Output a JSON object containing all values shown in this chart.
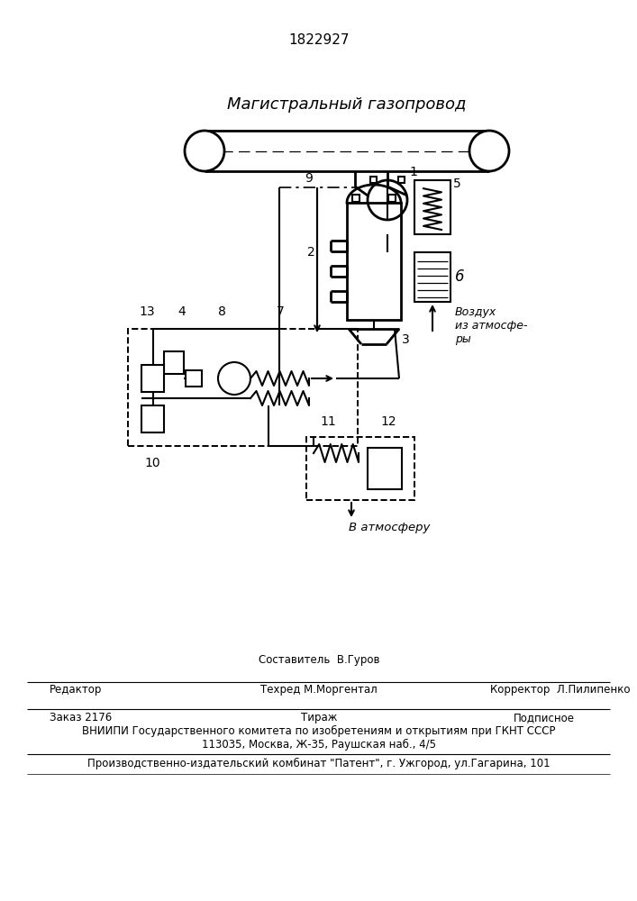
{
  "patent_number": "1822927",
  "title_pipe": "Магистральный газопровод",
  "label_vozduh": "Воздух\nиз атмосфе-\nры",
  "label_vatm": "В атмосферу",
  "bg_color": "#ffffff",
  "line_color": "#000000",
  "footer_editor": "Редактор",
  "footer_sostavitel": "Составитель  В.Гуров",
  "footer_tekhred": "Техред М.Моргентал",
  "footer_korrektor": "Корректор  Л.Пилипенко",
  "footer_zakaz": "Заказ 2176",
  "footer_tirazh": "Тираж",
  "footer_podpisnoe": "Подписное",
  "footer_vniip1": "ВНИИПИ Государственного комитета по изобретениям и открытиям при ГКНТ СССР",
  "footer_vniip2": "113035, Москва, Ж-35, Раушская наб., 4/5",
  "footer_patent": "Производственно-издательский комбинат \"Патент\", г. Ужгород, ул.Гагарина, 101"
}
